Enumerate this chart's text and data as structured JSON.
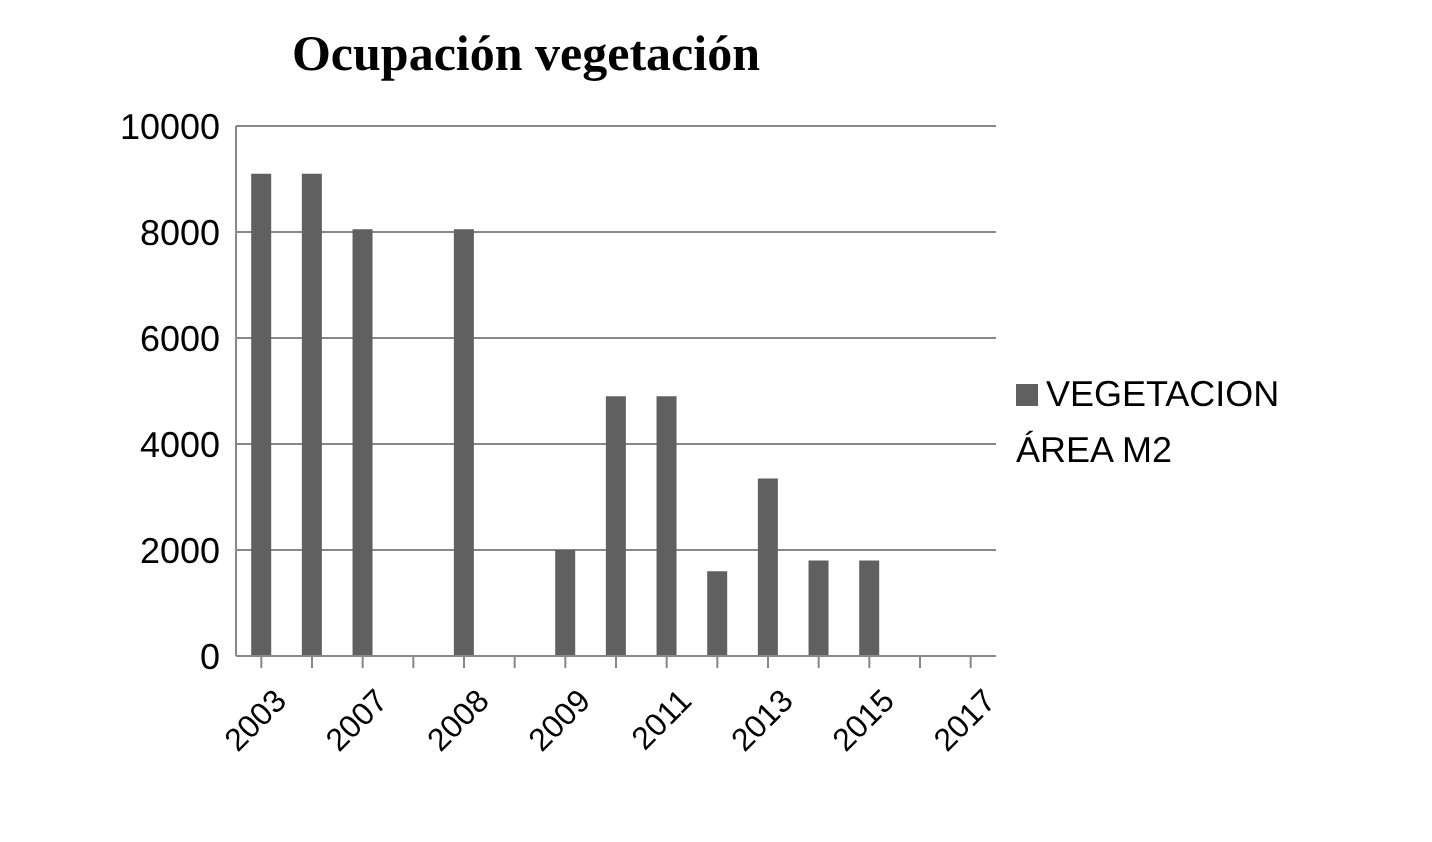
{
  "chart_data": {
    "type": "bar",
    "title": "Ocupación vegetación",
    "categories": [
      "2003",
      null,
      "2007",
      null,
      "2008",
      null,
      "2009",
      null,
      "2011",
      null,
      "2013",
      null,
      "2015",
      null,
      "2017"
    ],
    "series": [
      {
        "name": "VEGETACION ÁREA M2",
        "color": "#606060",
        "values": [
          9100,
          9100,
          8050,
          null,
          8050,
          null,
          2000,
          4900,
          4900,
          1600,
          3350,
          1800,
          1800,
          null,
          null
        ]
      }
    ],
    "ylim": [
      0,
      10000
    ],
    "yticks": [
      0,
      2000,
      4000,
      6000,
      8000,
      10000
    ],
    "grid": "y",
    "legend": "right"
  }
}
